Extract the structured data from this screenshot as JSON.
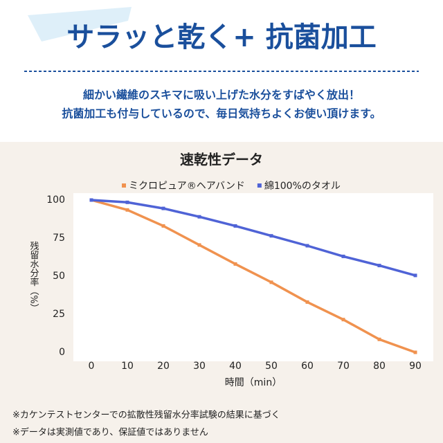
{
  "header": {
    "title": "サラッと乾く+ 抗菌加工",
    "lines": [
      "細かい繊維のスキマに吸い上げた水分をすばやく放出！",
      "抗菌加工も付与しているので、毎日気持ちよくお使い頂けます。"
    ]
  },
  "chart_data": {
    "type": "line",
    "title": "速乾性データ",
    "x": [
      0,
      10,
      20,
      30,
      40,
      50,
      60,
      70,
      80,
      90
    ],
    "series": [
      {
        "name": "ミクロピュア®ヘアバンド",
        "color": "#f0924f",
        "values": [
          100,
          93.5,
          83,
          70.5,
          58,
          46,
          33,
          21.5,
          8.5,
          0
        ]
      },
      {
        "name": "綿100%のタオル",
        "color": "#4f63d6",
        "values": [
          100,
          98.5,
          94.5,
          89,
          83,
          76.5,
          70,
          63,
          57,
          50.5
        ]
      }
    ],
    "xlim": [
      -5,
      95
    ],
    "xticks": [
      0,
      10,
      20,
      30,
      40,
      50,
      60,
      70,
      80,
      90
    ],
    "ylim": [
      0,
      100
    ],
    "yticks": [
      0,
      25,
      50,
      75,
      100
    ],
    "xlabel": "時間（min）",
    "ylabel": "残留水分率（%）",
    "grid": false,
    "legend": "top"
  },
  "footnotes": [
    "※カケンテストセンターでの拡散性残留水分率試験の結果に基づく",
    "※データは実測値であり、保証値ではありません"
  ]
}
